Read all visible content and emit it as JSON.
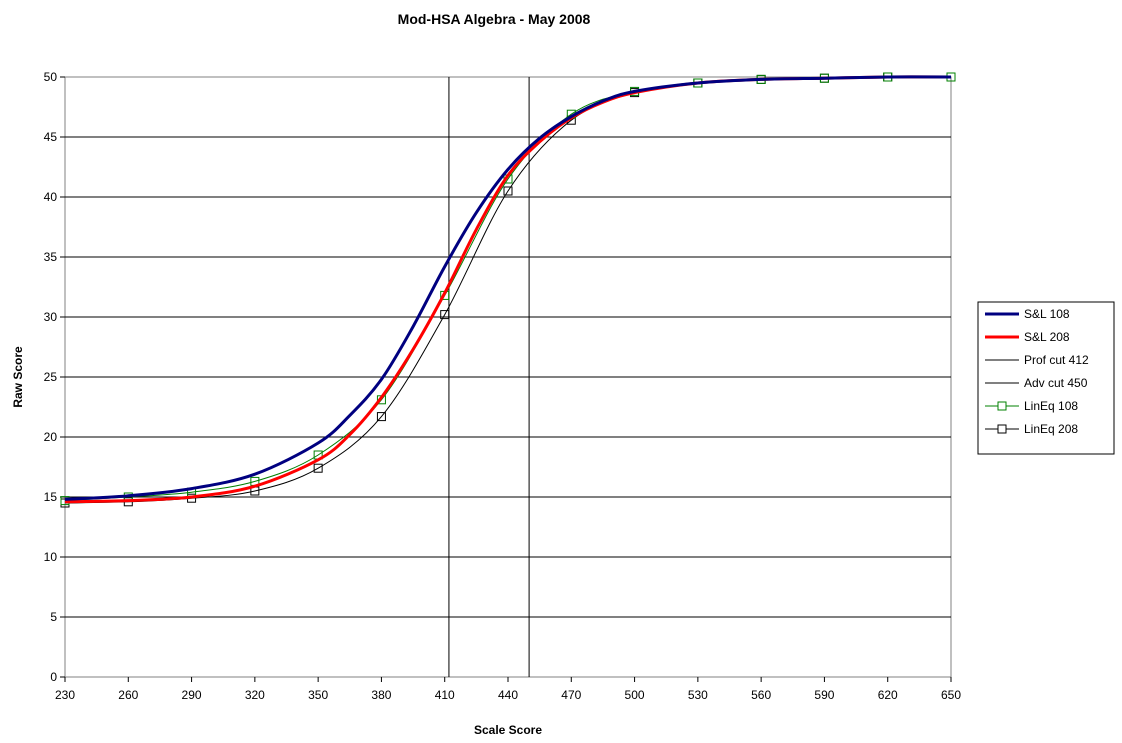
{
  "chart_data": {
    "type": "line",
    "title": "Mod-HSA Algebra - May 2008",
    "xlabel": "Scale Score",
    "ylabel": "Raw Score",
    "xlim": [
      230,
      650
    ],
    "ylim": [
      0,
      50
    ],
    "x_ticks": [
      230,
      260,
      290,
      320,
      350,
      380,
      410,
      440,
      470,
      500,
      530,
      560,
      590,
      620,
      650
    ],
    "y_ticks": [
      0,
      5,
      10,
      15,
      20,
      25,
      30,
      35,
      40,
      45,
      50
    ],
    "grid": "horizontal",
    "legend_position": "right",
    "series": [
      {
        "name": "S&L 108",
        "color": "#000080",
        "marker": "none",
        "x": [
          230,
          260,
          290,
          320,
          350,
          365,
          380,
          395,
          410,
          425,
          440,
          455,
          470,
          485,
          500,
          530,
          560,
          590,
          620,
          650
        ],
        "y": [
          14.8,
          15.1,
          15.7,
          16.9,
          19.5,
          21.8,
          24.8,
          29.2,
          34.2,
          38.7,
          42.3,
          44.9,
          46.7,
          48.0,
          48.8,
          49.5,
          49.8,
          49.9,
          50.0,
          50.0
        ]
      },
      {
        "name": "S&L 208",
        "color": "#ff0000",
        "marker": "none",
        "x": [
          230,
          260,
          290,
          320,
          350,
          365,
          380,
          395,
          410,
          425,
          440,
          455,
          470,
          485,
          500,
          530,
          560,
          590,
          620,
          650
        ],
        "y": [
          14.6,
          14.7,
          15.0,
          15.9,
          18.1,
          20.2,
          23.3,
          27.3,
          32.0,
          37.3,
          41.8,
          44.6,
          46.6,
          47.9,
          48.7,
          49.5,
          49.8,
          49.9,
          50.0,
          50.0
        ]
      },
      {
        "name": "Prof cut 412",
        "color": "#000000",
        "marker": "none",
        "x": [
          412,
          412
        ],
        "y": [
          0,
          50
        ]
      },
      {
        "name": "Adv cut 450",
        "color": "#000000",
        "marker": "none",
        "x": [
          450,
          450
        ],
        "y": [
          0,
          50
        ]
      },
      {
        "name": "LinEq 108",
        "color": "#008000",
        "marker": "square",
        "x": [
          230,
          260,
          290,
          320,
          350,
          380,
          410,
          440,
          470,
          500,
          530,
          560,
          590,
          620,
          650
        ],
        "y": [
          14.7,
          15.0,
          15.4,
          16.3,
          18.5,
          23.1,
          31.8,
          41.5,
          46.9,
          48.8,
          49.5,
          49.8,
          49.9,
          50.0,
          50.0
        ]
      },
      {
        "name": "LinEq 208",
        "color": "#000000",
        "marker": "square",
        "x": [
          230,
          260,
          290,
          320,
          350,
          380,
          410,
          440,
          470,
          500,
          530,
          560,
          590,
          620,
          650
        ],
        "y": [
          14.5,
          14.6,
          14.9,
          15.5,
          17.4,
          21.7,
          30.2,
          40.5,
          46.4,
          48.7,
          49.5,
          49.8,
          49.9,
          50.0,
          50.0
        ]
      }
    ]
  }
}
